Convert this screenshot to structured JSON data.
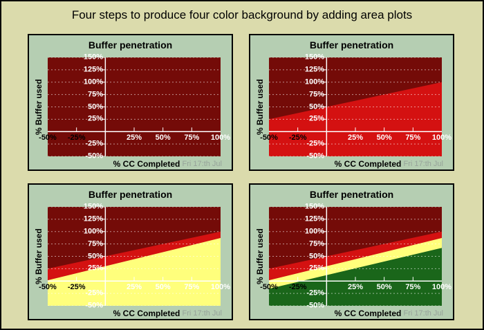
{
  "figure": {
    "title": "Four steps to produce four color background by adding area plots",
    "background": "#DBDBAC",
    "panel_background": "#B5CEB2",
    "border_color": "#000000"
  },
  "panel_common": {
    "title": "Buffer penetration",
    "y_axis_title": "% Buffer used",
    "x_axis_title": "% CC Completed",
    "timestamp": "Fri 17:th Jul",
    "timestamp_color": "#97A39A",
    "y_tick_labels": [
      "150%",
      "125%",
      "100%",
      "75%",
      "50%",
      "25%",
      "-25%",
      "-50%"
    ],
    "x_tick_labels": [
      "-50%",
      "-25%",
      "25%",
      "50%",
      "75%",
      "100%"
    ],
    "x_tick_label_colors": [
      "#000000",
      "#000000",
      "#ffffff",
      "#ffffff",
      "#ffffff",
      "#ffffff"
    ]
  },
  "chart_data": {
    "type": "area",
    "description": "Four identical axes; each step adds one stacked area plot to build a four color background",
    "x_range": [
      -50,
      100
    ],
    "y_range": [
      -50,
      150
    ],
    "x_tick_values": [
      -50,
      -25,
      25,
      50,
      75,
      100
    ],
    "y_tick_values": [
      150,
      125,
      100,
      75,
      50,
      25,
      -25,
      -50
    ],
    "x_tick_mark_values": [
      -25,
      25,
      50,
      75
    ],
    "grid": "horizontal dashed lines at every 25%, solid white axes at x=0 and y=0",
    "style": {
      "base_color": "#740B08",
      "axis_color": "#ffffff",
      "grid_color": "#ffffff",
      "grid_opacity": 0.55
    },
    "panels": [
      {
        "step": 1,
        "zones": [
          {
            "name": "darkred-base",
            "color": "#740B08",
            "area": "full"
          }
        ]
      },
      {
        "step": 2,
        "zones": [
          {
            "name": "darkred-base",
            "color": "#740B08",
            "area": "full"
          },
          {
            "name": "red",
            "color": "#D41111",
            "boundary": {
              "x": [
                -50,
                100
              ],
              "y": [
                25,
                100
              ]
            }
          }
        ]
      },
      {
        "step": 3,
        "zones": [
          {
            "name": "darkred-base",
            "color": "#740B08",
            "area": "full"
          },
          {
            "name": "red",
            "color": "#D41111",
            "boundary": {
              "x": [
                -50,
                100
              ],
              "y": [
                25,
                100
              ]
            }
          },
          {
            "name": "yellow",
            "color": "#FFFF7C",
            "boundary": {
              "x": [
                -50,
                100
              ],
              "y": [
                1.5,
                87
              ]
            }
          }
        ]
      },
      {
        "step": 4,
        "zones": [
          {
            "name": "darkred-base",
            "color": "#740B08",
            "area": "full"
          },
          {
            "name": "red",
            "color": "#D41111",
            "boundary": {
              "x": [
                -50,
                100
              ],
              "y": [
                25,
                100
              ]
            }
          },
          {
            "name": "yellow",
            "color": "#FFFF7C",
            "boundary": {
              "x": [
                -50,
                100
              ],
              "y": [
                1.5,
                87
              ]
            }
          },
          {
            "name": "green",
            "color": "#1A661A",
            "boundary": {
              "x": [
                -50,
                100
              ],
              "y": [
                -15.5,
                67
              ]
            }
          }
        ]
      }
    ]
  }
}
